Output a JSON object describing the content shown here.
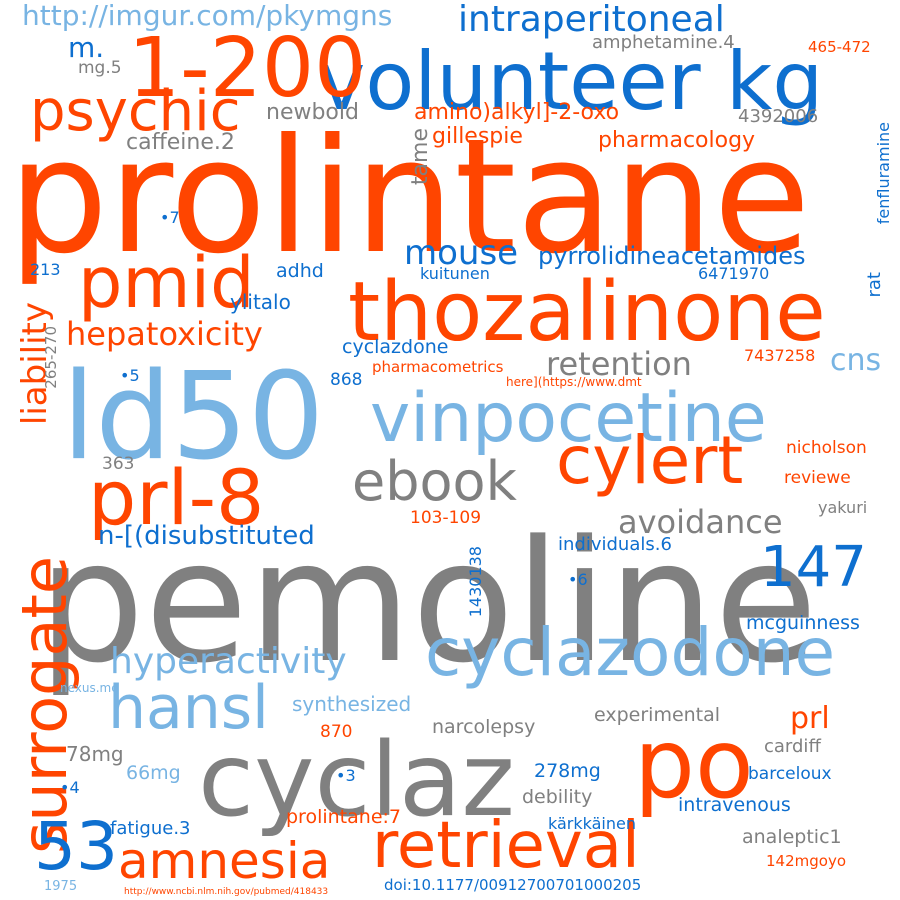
{
  "palette": {
    "orange": "#ff4500",
    "gray": "#808080",
    "blue": "#0e6fcf",
    "light_blue": "#78b4e3"
  },
  "words": [
    "prolintane",
    "pemoline",
    "ld50",
    "volunteer kg",
    "1-200",
    "thozalinone",
    "vinpocetine",
    "cyclaz",
    "cyclazodone",
    "surrogate",
    "liability",
    "pmid",
    "psychic",
    "prl-8",
    "ebook",
    "cylert",
    "hansl",
    "po",
    "retrieval",
    "amnesia",
    "53",
    "147",
    "http://imgur.com/pkymgns",
    "intraperitoneal",
    "hepatoxicity",
    "mouse",
    "pyrrolidineacetamides",
    "retention",
    "hyperactivity",
    "avoidance",
    "n-[(disubstituted",
    "amino)alkyl]-2-oxo",
    "gillespie",
    "pharmacology",
    "caffeine.2",
    "newbold",
    "amphetamine.4",
    "m.",
    "mg.5",
    "4392006",
    "465-472",
    "fenfluramine",
    "tame",
    "adhd",
    "kuitunen",
    "6471970",
    "ylitalo",
    "213",
    "cyclazdone",
    "pharmacometrics",
    "here](https://www.dmt",
    "7437258",
    "cns",
    "868",
    "265-270",
    "363",
    "nicholson",
    "reviewe",
    "yakuri",
    "103-109",
    "individuals.6",
    "1430138",
    "mcguinness",
    "synthesized",
    "narcolepsy",
    "experimental",
    "prl",
    "cardiff",
    "870",
    "78mg",
    "66mg",
    "278mg",
    "debility",
    "barceloux",
    "intravenous",
    "prolintane:7",
    "fatigue.3",
    "analeptic1",
    "kärkkäinen",
    "142mgoyo",
    "doi:10.1177/00912700701000205",
    "1975",
    "nexus.me",
    "rat",
    "•7",
    "•5",
    "•6",
    "•3",
    "•4",
    "http://www.ncbi.nlm.nih.gov/pubmed/418433"
  ]
}
